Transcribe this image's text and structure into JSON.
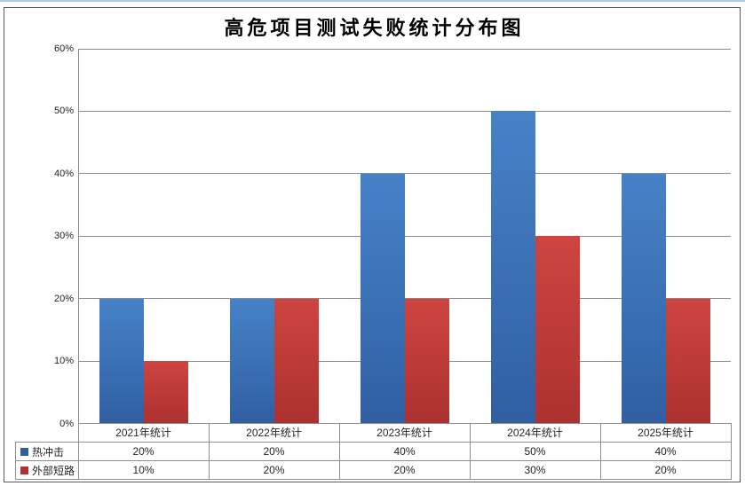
{
  "page": {
    "background": "#ffffff",
    "top_edge_color": "#AECBEB",
    "frame_border_color": "#5a5a5a"
  },
  "chart_data": {
    "type": "bar",
    "title": "高危项目测试失败统计分布图",
    "categories": [
      "2021年统计",
      "2022年统计",
      "2023年统计",
      "2024年统计",
      "2025年统计"
    ],
    "series": [
      {
        "name": "热冲击",
        "values": [
          20,
          20,
          40,
          50,
          40
        ],
        "labels": [
          "20%",
          "20%",
          "40%",
          "50%",
          "40%"
        ],
        "color": "#3B74B8",
        "marker_color": "#2E5E9C"
      },
      {
        "name": "外部短路",
        "values": [
          10,
          20,
          20,
          30,
          20
        ],
        "labels": [
          "10%",
          "20%",
          "20%",
          "30%",
          "20%"
        ],
        "color": "#C43C3C",
        "marker_color": "#B03232"
      }
    ],
    "y_ticks": [
      "60%",
      "50%",
      "40%",
      "30%",
      "20%",
      "10%",
      "0%"
    ],
    "y_tick_values": [
      60,
      50,
      40,
      30,
      20,
      10,
      0
    ],
    "ylim": [
      0,
      60
    ],
    "grid": true,
    "gridline_color": "#8a8a8a",
    "table_border_color": "#8f8f8f",
    "legend_position": "data-table-left",
    "data_table": true
  }
}
